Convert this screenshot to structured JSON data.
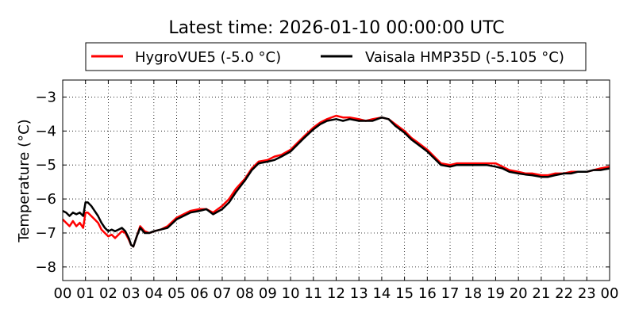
{
  "chart_data": {
    "type": "line",
    "title": "Latest time: 2026-01-10 00:00:00 UTC",
    "xlabel": "",
    "ylabel": "Temperature (°C)",
    "xlim": [
      0,
      24
    ],
    "ylim": [
      -8.4,
      -2.5
    ],
    "x_ticks": [
      "00",
      "01",
      "02",
      "03",
      "04",
      "05",
      "06",
      "07",
      "08",
      "09",
      "10",
      "11",
      "12",
      "13",
      "14",
      "15",
      "16",
      "17",
      "18",
      "19",
      "20",
      "21",
      "22",
      "23",
      "00"
    ],
    "y_ticks": [
      -3,
      -4,
      -5,
      -6,
      -7,
      -8
    ],
    "y_tick_labels": [
      "−3",
      "−4",
      "−5",
      "−6",
      "−7",
      "−8"
    ],
    "grid": true,
    "legend_position": "top",
    "series": [
      {
        "name": "HygroVUE5 (-5.0 °C)",
        "color": "#ff0000",
        "x": [
          0,
          0.15,
          0.3,
          0.45,
          0.6,
          0.75,
          0.9,
          1.0,
          1.1,
          1.25,
          1.4,
          1.55,
          1.7,
          1.85,
          2.0,
          2.15,
          2.3,
          2.45,
          2.6,
          2.75,
          2.9,
          3.0,
          3.1,
          3.25,
          3.4,
          3.6,
          3.8,
          4.0,
          4.3,
          4.6,
          5.0,
          5.3,
          5.6,
          6.0,
          6.3,
          6.6,
          7.0,
          7.3,
          7.6,
          8.0,
          8.3,
          8.6,
          9.0,
          9.3,
          9.6,
          10.0,
          10.3,
          10.6,
          11.0,
          11.3,
          11.6,
          12.0,
          12.3,
          12.6,
          13.0,
          13.3,
          13.6,
          14.0,
          14.3,
          14.6,
          15.0,
          15.3,
          15.6,
          16.0,
          16.3,
          16.6,
          17.0,
          17.3,
          17.6,
          18.0,
          18.3,
          18.6,
          19.0,
          19.3,
          19.6,
          20.0,
          20.3,
          20.6,
          21.0,
          21.3,
          21.6,
          22.0,
          22.3,
          22.6,
          23.0,
          23.3,
          23.6,
          24.0
        ],
        "values": [
          -6.6,
          -6.7,
          -6.8,
          -6.65,
          -6.8,
          -6.7,
          -6.85,
          -6.4,
          -6.4,
          -6.5,
          -6.6,
          -6.7,
          -6.9,
          -7.0,
          -7.1,
          -7.05,
          -7.15,
          -7.05,
          -6.95,
          -7.0,
          -7.2,
          -7.35,
          -7.4,
          -7.1,
          -6.8,
          -6.95,
          -7.0,
          -6.95,
          -6.9,
          -6.8,
          -6.55,
          -6.45,
          -6.35,
          -6.3,
          -6.3,
          -6.4,
          -6.2,
          -6.0,
          -5.7,
          -5.4,
          -5.1,
          -4.9,
          -4.85,
          -4.75,
          -4.7,
          -4.55,
          -4.35,
          -4.15,
          -3.9,
          -3.75,
          -3.65,
          -3.55,
          -3.6,
          -3.6,
          -3.65,
          -3.7,
          -3.65,
          -3.6,
          -3.65,
          -3.8,
          -4.0,
          -4.2,
          -4.35,
          -4.55,
          -4.75,
          -4.95,
          -5.0,
          -4.95,
          -4.95,
          -4.95,
          -4.95,
          -4.95,
          -4.95,
          -5.05,
          -5.15,
          -5.2,
          -5.25,
          -5.25,
          -5.3,
          -5.3,
          -5.25,
          -5.25,
          -5.2,
          -5.2,
          -5.2,
          -5.15,
          -5.1,
          -5.05
        ]
      },
      {
        "name": "Vaisala HMP35D (-5.105 °C)",
        "color": "#000000",
        "x": [
          0,
          0.15,
          0.3,
          0.45,
          0.6,
          0.75,
          0.9,
          1.0,
          1.1,
          1.25,
          1.4,
          1.55,
          1.7,
          1.85,
          2.0,
          2.15,
          2.3,
          2.45,
          2.6,
          2.75,
          2.9,
          3.0,
          3.1,
          3.25,
          3.4,
          3.6,
          3.8,
          4.0,
          4.3,
          4.6,
          5.0,
          5.3,
          5.6,
          6.0,
          6.3,
          6.6,
          7.0,
          7.3,
          7.6,
          8.0,
          8.3,
          8.6,
          9.0,
          9.3,
          9.6,
          10.0,
          10.3,
          10.6,
          11.0,
          11.3,
          11.6,
          12.0,
          12.3,
          12.6,
          13.0,
          13.3,
          13.6,
          14.0,
          14.3,
          14.6,
          15.0,
          15.3,
          15.6,
          16.0,
          16.3,
          16.6,
          17.0,
          17.3,
          17.6,
          18.0,
          18.3,
          18.6,
          19.0,
          19.3,
          19.6,
          20.0,
          20.3,
          20.6,
          21.0,
          21.3,
          21.6,
          22.0,
          22.3,
          22.6,
          23.0,
          23.3,
          23.6,
          24.0
        ],
        "values": [
          -6.35,
          -6.4,
          -6.5,
          -6.4,
          -6.45,
          -6.4,
          -6.5,
          -6.1,
          -6.1,
          -6.2,
          -6.35,
          -6.5,
          -6.7,
          -6.85,
          -6.95,
          -6.9,
          -6.95,
          -6.9,
          -6.85,
          -6.95,
          -7.15,
          -7.35,
          -7.4,
          -7.1,
          -6.85,
          -7.0,
          -7.0,
          -6.95,
          -6.9,
          -6.85,
          -6.6,
          -6.5,
          -6.4,
          -6.35,
          -6.3,
          -6.45,
          -6.3,
          -6.1,
          -5.8,
          -5.45,
          -5.15,
          -4.95,
          -4.9,
          -4.85,
          -4.75,
          -4.6,
          -4.4,
          -4.2,
          -3.95,
          -3.8,
          -3.7,
          -3.65,
          -3.7,
          -3.65,
          -3.7,
          -3.7,
          -3.7,
          -3.6,
          -3.65,
          -3.85,
          -4.05,
          -4.25,
          -4.4,
          -4.6,
          -4.8,
          -5.0,
          -5.05,
          -5.0,
          -5.0,
          -5.0,
          -5.0,
          -5.0,
          -5.05,
          -5.1,
          -5.2,
          -5.25,
          -5.28,
          -5.3,
          -5.35,
          -5.35,
          -5.3,
          -5.25,
          -5.25,
          -5.2,
          -5.2,
          -5.15,
          -5.15,
          -5.1
        ]
      }
    ]
  }
}
